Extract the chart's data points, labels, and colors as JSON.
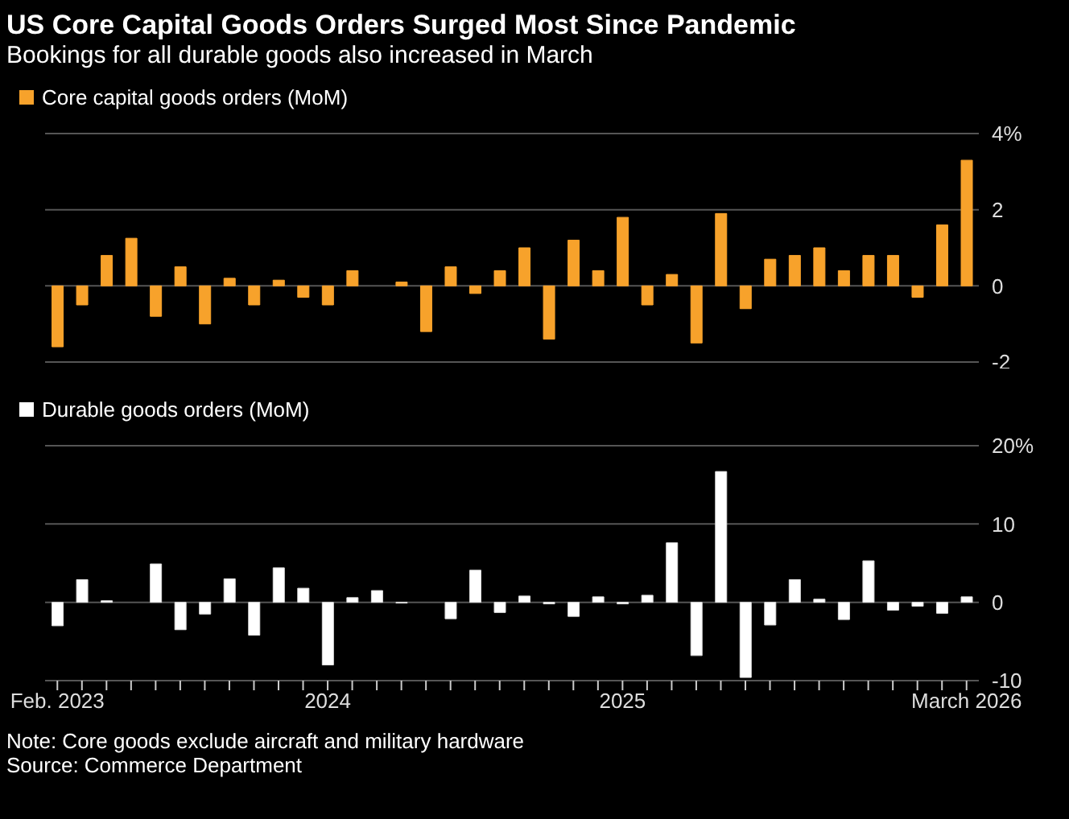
{
  "chart_data": [
    {
      "type": "bar",
      "title": "US Core Capital Goods Orders Surged Most Since Pandemic",
      "subtitle": "Bookings for all durable goods also increased in March",
      "categories": [
        null,
        null,
        null,
        null,
        null,
        null,
        null,
        null,
        null,
        null,
        null,
        null,
        null,
        null,
        null,
        null,
        null,
        null,
        null,
        null,
        null,
        null,
        null,
        null,
        null,
        null,
        null,
        null,
        null,
        null,
        null,
        null,
        null,
        null,
        null,
        null,
        null,
        null
      ],
      "series": [
        {
          "name": "Core capital goods orders (MoM)",
          "color": "#f7a22b",
          "values": [
            -1.6,
            -0.5,
            0.8,
            1.25,
            -0.8,
            0.5,
            -1.0,
            0.2,
            -0.5,
            0.15,
            -0.3,
            -0.5,
            0.4,
            0.0,
            0.1,
            -1.2,
            0.5,
            -0.2,
            0.4,
            1.0,
            -1.4,
            1.2,
            0.4,
            1.8,
            -0.5,
            0.3,
            -1.5,
            1.9,
            -0.6,
            0.7,
            0.8,
            1.0,
            0.4,
            0.8,
            0.8,
            -0.3,
            1.6,
            3.3
          ]
        }
      ],
      "ylim": [
        -2,
        4
      ],
      "yticks": [
        -2,
        0,
        2,
        {
          "value": 4,
          "label": "4%"
        }
      ],
      "grid": "y",
      "legend": "top left",
      "tick_labels": "y"
    },
    {
      "type": "bar",
      "categories": [
        "Feb. 2023",
        null,
        null,
        null,
        null,
        null,
        null,
        null,
        null,
        null,
        null,
        "2024",
        null,
        null,
        null,
        null,
        null,
        null,
        null,
        null,
        null,
        null,
        null,
        "2025",
        null,
        null,
        null,
        null,
        null,
        null,
        null,
        null,
        null,
        null,
        null,
        null,
        null,
        "March 2026"
      ],
      "series": [
        {
          "name": "Durable goods orders (MoM)",
          "color": "#ffffff",
          "values": [
            -3.0,
            2.9,
            0.2,
            0,
            4.9,
            -3.5,
            -1.5,
            3.0,
            -4.2,
            4.4,
            1.8,
            -8.0,
            0.6,
            1.5,
            -0.1,
            0,
            -2.1,
            4.1,
            -1.3,
            0.8,
            -0.2,
            -1.8,
            0.7,
            -0.2,
            0.9,
            7.6,
            -6.8,
            16.7,
            -9.6,
            -2.9,
            2.9,
            0.4,
            -2.2,
            5.3,
            -1.0,
            -0.5,
            -1.4,
            0.7
          ]
        }
      ],
      "ylim": [
        -10,
        20
      ],
      "yticks": [
        -10,
        0,
        10,
        {
          "value": 20,
          "label": "20%"
        }
      ],
      "grid": "y",
      "legend": "top left",
      "annotations": [
        "Note: Core goods exclude aircraft and military hardware",
        "Source: Commerce Department"
      ]
    }
  ]
}
